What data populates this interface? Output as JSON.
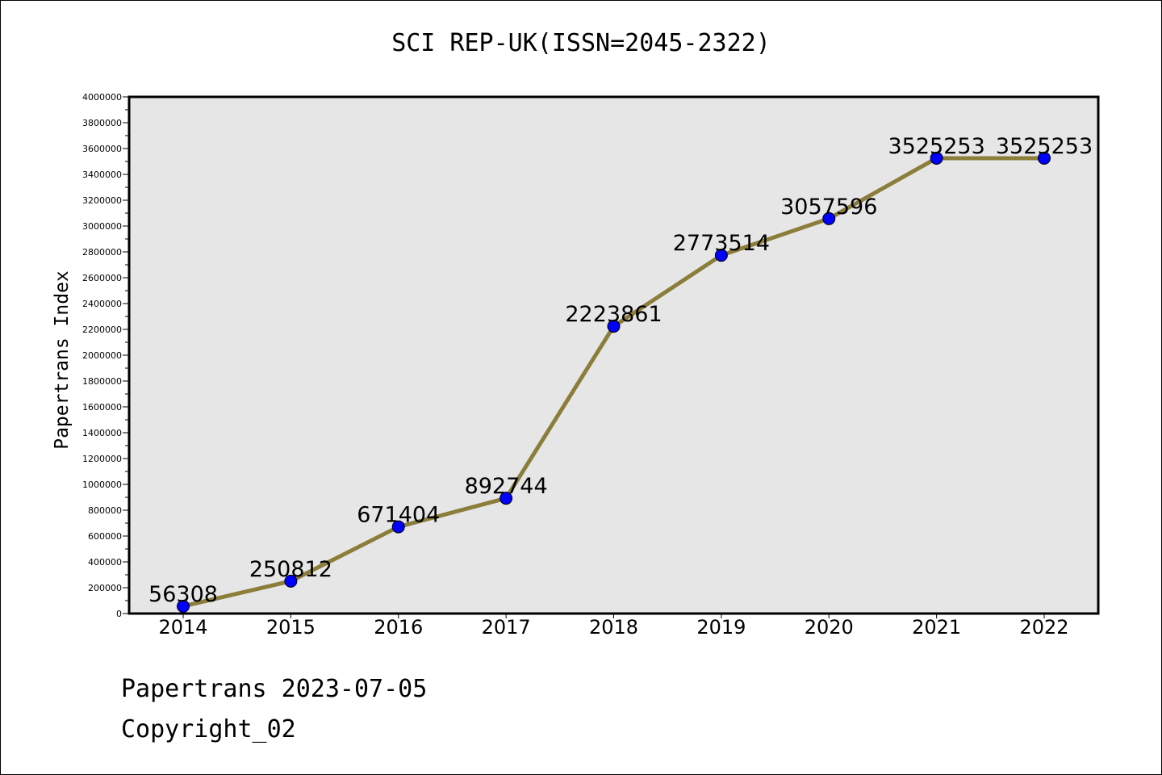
{
  "chart_data": {
    "type": "line",
    "title": "SCI REP-UK(ISSN=2045-2322)",
    "xlabel": "",
    "ylabel": "Papertrans Index",
    "categories": [
      "2014",
      "2015",
      "2016",
      "2017",
      "2018",
      "2019",
      "2020",
      "2021",
      "2022"
    ],
    "series": [
      {
        "values": [
          56308,
          250812,
          671404,
          892744,
          2223861,
          2773514,
          3057596,
          3525253,
          3525253
        ],
        "labels": [
          "56308",
          "250812",
          "671404",
          "892744",
          "2223861",
          "2773514",
          "3057596",
          "3525253",
          "3525253"
        ]
      }
    ],
    "ylim": [
      0,
      4000000
    ],
    "yticks": [
      0,
      200000,
      400000,
      600000,
      800000,
      1000000,
      1200000,
      1400000,
      1600000,
      1800000,
      2000000,
      2200000,
      2400000,
      2600000,
      2800000,
      3000000,
      3200000,
      3400000,
      3600000,
      3800000,
      4000000
    ],
    "grid": false,
    "colors": {
      "line": "#8b7d3a",
      "marker": "#0000ff",
      "plot_background": "#e6e6e6"
    }
  },
  "footer": {
    "line1": "Papertrans 2023-07-05",
    "line2": "Copyright_02"
  }
}
